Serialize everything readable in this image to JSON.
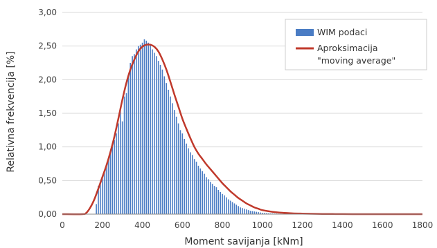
{
  "chart_data": {
    "type": "bar",
    "xlabel": "Moment savijanja [kNm]",
    "ylabel": "Relativna frekvencija [%]",
    "xlim": [
      0,
      1800
    ],
    "ylim": [
      0,
      3
    ],
    "x_ticks": [
      "0",
      "200",
      "400",
      "600",
      "800",
      "1000",
      "1200",
      "1400",
      "1600",
      "1800"
    ],
    "y_ticks": [
      "0,00",
      "0,50",
      "1,00",
      "1,50",
      "2,00",
      "2,50",
      "3,00"
    ],
    "grid": "horizontal",
    "legend_position": "top-right",
    "colors": {
      "bars": "#4a7cc4",
      "line": "#c0392b"
    },
    "bars_name": "WIM podaci",
    "line_name": [
      "Aproksimacija",
      "\"moving average\""
    ],
    "bars": {
      "x": [
        170,
        180,
        190,
        200,
        210,
        220,
        230,
        240,
        250,
        260,
        270,
        280,
        290,
        300,
        310,
        320,
        330,
        340,
        350,
        360,
        370,
        380,
        390,
        400,
        410,
        420,
        430,
        440,
        450,
        460,
        470,
        480,
        490,
        500,
        510,
        520,
        530,
        540,
        550,
        560,
        570,
        580,
        590,
        600,
        610,
        620,
        630,
        640,
        650,
        660,
        670,
        680,
        690,
        700,
        710,
        720,
        730,
        740,
        750,
        760,
        770,
        780,
        790,
        800,
        810,
        820,
        830,
        840,
        850,
        860,
        870,
        880,
        890,
        900,
        910,
        920,
        930,
        940,
        950,
        960,
        970,
        980,
        990,
        1000,
        1010,
        1020,
        1030,
        1040,
        1050,
        1060,
        1070,
        1080,
        1090,
        1100,
        1110,
        1120,
        1130,
        1140,
        1150,
        1160,
        1170,
        1180,
        1190,
        1200
      ],
      "values": [
        0.15,
        0.42,
        0.48,
        0.55,
        0.62,
        0.72,
        0.82,
        0.92,
        1.0,
        1.1,
        1.2,
        1.35,
        1.55,
        1.38,
        1.75,
        1.8,
        2.05,
        2.25,
        2.35,
        2.38,
        2.45,
        2.5,
        2.52,
        2.55,
        2.6,
        2.58,
        2.55,
        2.52,
        2.45,
        2.4,
        2.35,
        2.28,
        2.22,
        2.15,
        2.05,
        1.95,
        1.85,
        1.75,
        1.65,
        1.55,
        1.45,
        1.35,
        1.25,
        1.2,
        1.12,
        1.05,
        0.98,
        0.92,
        0.88,
        0.82,
        0.78,
        0.72,
        0.68,
        0.64,
        0.6,
        0.55,
        0.52,
        0.48,
        0.45,
        0.42,
        0.4,
        0.36,
        0.33,
        0.3,
        0.28,
        0.25,
        0.22,
        0.2,
        0.18,
        0.16,
        0.14,
        0.12,
        0.1,
        0.09,
        0.08,
        0.07,
        0.06,
        0.05,
        0.045,
        0.04,
        0.035,
        0.03,
        0.025,
        0.02,
        0.018,
        0.015,
        0.012,
        0.01,
        0.01,
        0.008,
        0.008,
        0.006,
        0.006,
        0.005,
        0.005,
        0.004,
        0.004,
        0.003,
        0.003,
        0.002,
        0.002,
        0.002,
        0.001,
        0.001
      ]
    },
    "line": {
      "x": [
        0,
        100,
        120,
        140,
        160,
        180,
        200,
        220,
        240,
        260,
        280,
        300,
        320,
        340,
        360,
        380,
        400,
        420,
        440,
        460,
        480,
        500,
        520,
        540,
        560,
        580,
        600,
        620,
        640,
        660,
        680,
        700,
        720,
        740,
        760,
        780,
        800,
        820,
        840,
        860,
        880,
        900,
        920,
        940,
        960,
        980,
        1000,
        1050,
        1100,
        1150,
        1200,
        1250,
        1300,
        1350,
        1400,
        1500,
        1600,
        1700,
        1800
      ],
      "values": [
        0,
        0,
        0.02,
        0.1,
        0.22,
        0.38,
        0.55,
        0.72,
        0.92,
        1.15,
        1.42,
        1.7,
        1.95,
        2.15,
        2.3,
        2.42,
        2.49,
        2.52,
        2.52,
        2.49,
        2.42,
        2.3,
        2.15,
        1.97,
        1.78,
        1.6,
        1.42,
        1.27,
        1.13,
        1.0,
        0.9,
        0.82,
        0.74,
        0.67,
        0.6,
        0.53,
        0.46,
        0.4,
        0.34,
        0.29,
        0.24,
        0.2,
        0.16,
        0.13,
        0.1,
        0.08,
        0.06,
        0.035,
        0.02,
        0.012,
        0.008,
        0.005,
        0.003,
        0.002,
        0.001,
        0,
        0,
        0,
        0
      ]
    }
  }
}
